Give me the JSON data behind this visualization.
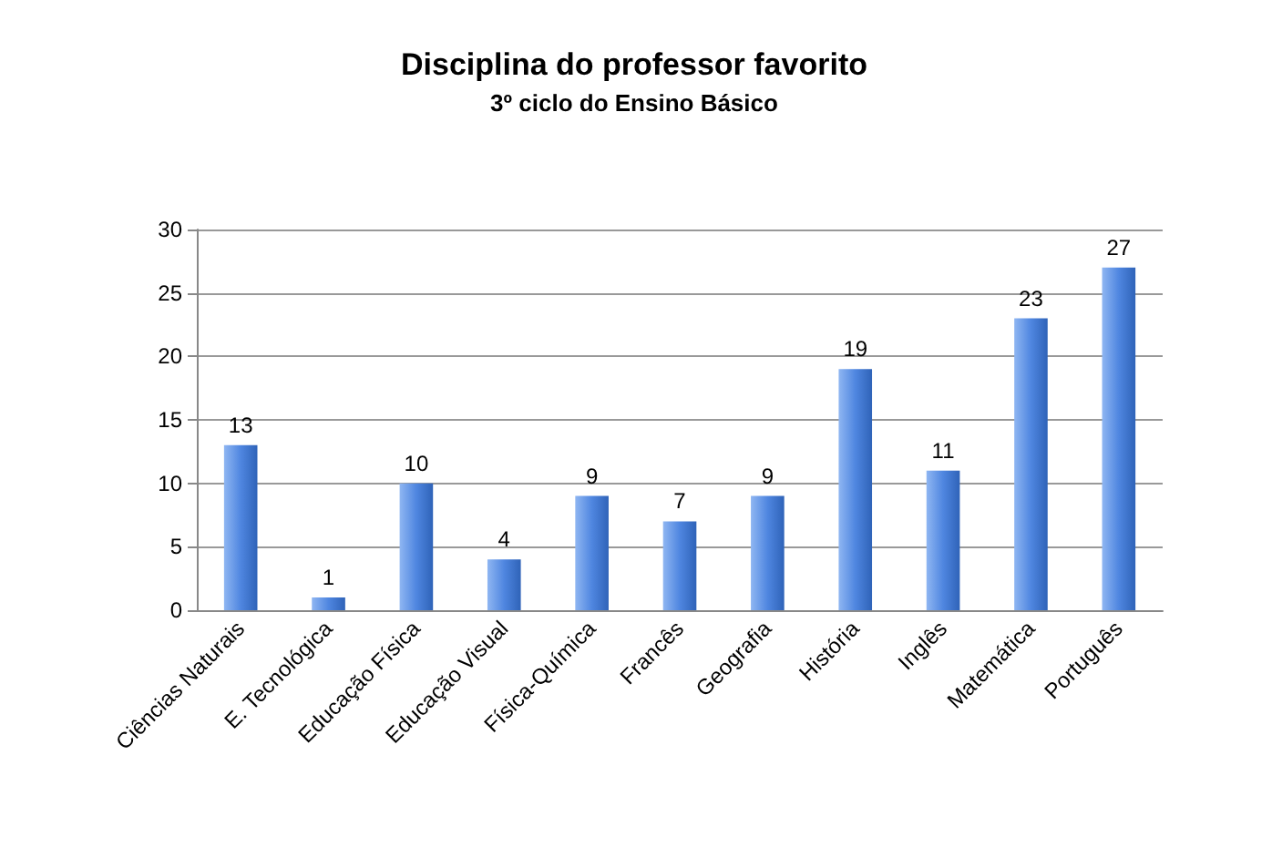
{
  "chart_data": {
    "type": "bar",
    "title": "Disciplina do professor favorito",
    "subtitle": "3º ciclo do Ensino Básico",
    "categories": [
      "Ciências Naturais",
      "E. Tecnológica",
      "Educação Física",
      "Educação Visual",
      "Física-Química",
      "Francês",
      "Geografia",
      "História",
      "Inglês",
      "Matemática",
      "Português"
    ],
    "values": [
      13,
      1,
      10,
      4,
      9,
      7,
      9,
      19,
      11,
      23,
      27
    ],
    "color": "#4f86e0",
    "ylim": [
      0,
      30
    ],
    "yticks": [
      0,
      5,
      10,
      15,
      20,
      25,
      30
    ],
    "grid": "y",
    "data_labels": true
  }
}
